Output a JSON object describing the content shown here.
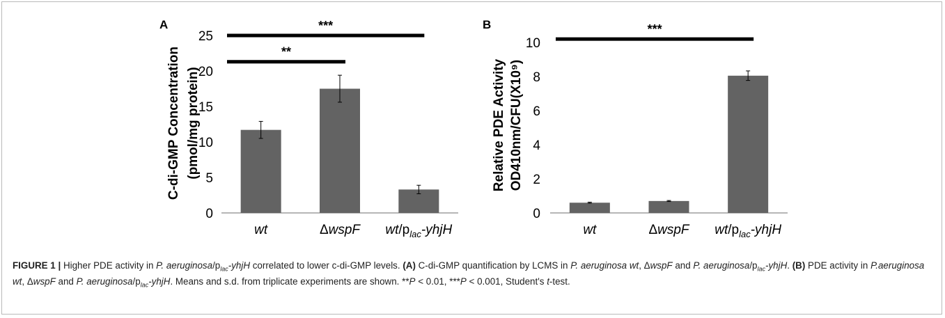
{
  "chart_data": [
    {
      "type": "bar",
      "panel": "A",
      "ylabel": [
        "C-di-GMP Concentration",
        "(pmol/mg protein)"
      ],
      "categories": [
        {
          "parts": [
            {
              "t": "wt"
            }
          ]
        },
        {
          "parts": [
            {
              "t": "Δ",
              "upright": true
            },
            {
              "t": "wspF"
            }
          ]
        },
        {
          "parts": [
            {
              "t": "wt"
            },
            {
              "t": "/p",
              "upright": true
            },
            {
              "t": "lac",
              "sub": true
            },
            {
              "t": "-yhjH"
            }
          ]
        }
      ],
      "values": [
        11.7,
        17.5,
        3.3
      ],
      "errors": [
        1.2,
        1.9,
        0.6
      ],
      "ylim": [
        0,
        25
      ],
      "yticks": [
        "0",
        "5",
        "10",
        "15",
        "20",
        "25"
      ],
      "grid": false,
      "bar_color": "#636363",
      "significance": [
        {
          "from": 0,
          "to": 1,
          "label": "**",
          "y": 21.3
        },
        {
          "from": 0,
          "to": 2,
          "label": "***",
          "y": 25
        }
      ]
    },
    {
      "type": "bar",
      "panel": "B",
      "ylabel": [
        "Relative PDE Activity",
        "OD410nm/CFU(X10⁹)"
      ],
      "categories": [
        {
          "parts": [
            {
              "t": "wt"
            }
          ]
        },
        {
          "parts": [
            {
              "t": "Δ",
              "upright": true
            },
            {
              "t": "wspF"
            }
          ]
        },
        {
          "parts": [
            {
              "t": "wt"
            },
            {
              "t": "/p",
              "upright": true
            },
            {
              "t": "lac",
              "sub": true
            },
            {
              "t": "-yhjH"
            }
          ]
        }
      ],
      "values": [
        0.6,
        0.7,
        8.05
      ],
      "errors": [
        0.03,
        0.03,
        0.28
      ],
      "ylim": [
        0,
        10
      ],
      "yticks": [
        "0",
        "2",
        "4",
        "6",
        "8",
        "10"
      ],
      "grid": false,
      "bar_color": "#636363",
      "significance": [
        {
          "from": 0,
          "to": 2,
          "label": "***",
          "y": 10.2
        }
      ]
    }
  ],
  "caption": [
    {
      "t": "FIGURE 1 | ",
      "b": true
    },
    {
      "t": "Higher PDE activity in "
    },
    {
      "t": "P. aeruginosa",
      "i": true
    },
    {
      "t": "/p"
    },
    {
      "t": "lac",
      "i": true,
      "sub": true
    },
    {
      "t": "-yhjH",
      "i": true
    },
    {
      "t": " correlated to lower c-di-GMP levels. "
    },
    {
      "t": "(A)",
      "b": true
    },
    {
      "t": " C-di-GMP quantification by LCMS in "
    },
    {
      "t": "P. aeruginosa wt",
      "i": true
    },
    {
      "t": ", Δ"
    },
    {
      "t": "wspF",
      "i": true
    },
    {
      "t": " and "
    },
    {
      "t": "P. aeruginosa",
      "i": true
    },
    {
      "t": "/p"
    },
    {
      "t": "lac",
      "i": true,
      "sub": true
    },
    {
      "t": "-yhjH",
      "i": true
    },
    {
      "t": ". "
    },
    {
      "t": "(B)",
      "b": true
    },
    {
      "t": " PDE activity in "
    },
    {
      "t": "P.aeruginosa wt",
      "i": true
    },
    {
      "t": ", Δ"
    },
    {
      "t": "wspF",
      "i": true
    },
    {
      "t": " and "
    },
    {
      "t": "P. aeruginosa",
      "i": true
    },
    {
      "t": "/p"
    },
    {
      "t": "lac",
      "i": true,
      "sub": true
    },
    {
      "t": "-yhjH",
      "i": true
    },
    {
      "t": ". Means and s.d. from triplicate experiments are shown. **"
    },
    {
      "t": "P",
      "i": true
    },
    {
      "t": " < 0.01, ***"
    },
    {
      "t": "P",
      "i": true
    },
    {
      "t": " < 0.001, Student's "
    },
    {
      "t": "t",
      "i": true
    },
    {
      "t": "-test."
    }
  ]
}
